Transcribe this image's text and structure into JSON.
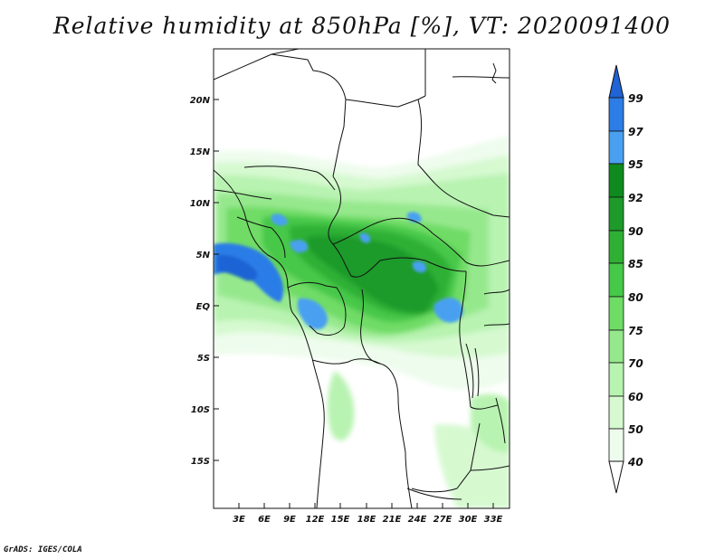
{
  "map": {
    "title": "Relative humidity at 850hPa [%], VT: 2020091400",
    "credit": "GrADS: IGES/COLA",
    "lat_labels": [
      "20N",
      "15N",
      "10N",
      "5N",
      "EQ",
      "5S",
      "10S",
      "15S"
    ],
    "lon_labels": [
      "3E",
      "6E",
      "9E",
      "12E",
      "15E",
      "18E",
      "21E",
      "24E",
      "27E",
      "30E",
      "33E"
    ],
    "lon_range_deg": [
      0,
      35
    ],
    "lat_range_deg": [
      -20,
      24
    ]
  },
  "colorbar": {
    "levels": [
      "99",
      "97",
      "95",
      "92",
      "90",
      "85",
      "80",
      "75",
      "70",
      "60",
      "50",
      "40"
    ],
    "colors": [
      "#1f63d6",
      "#2c7de6",
      "#4aa0f0",
      "#0f8a1e",
      "#1e9a2a",
      "#2fb035",
      "#46c848",
      "#6fdc66",
      "#96e88d",
      "#b8f3b1",
      "#d6f9d0",
      "#eefced"
    ]
  }
}
